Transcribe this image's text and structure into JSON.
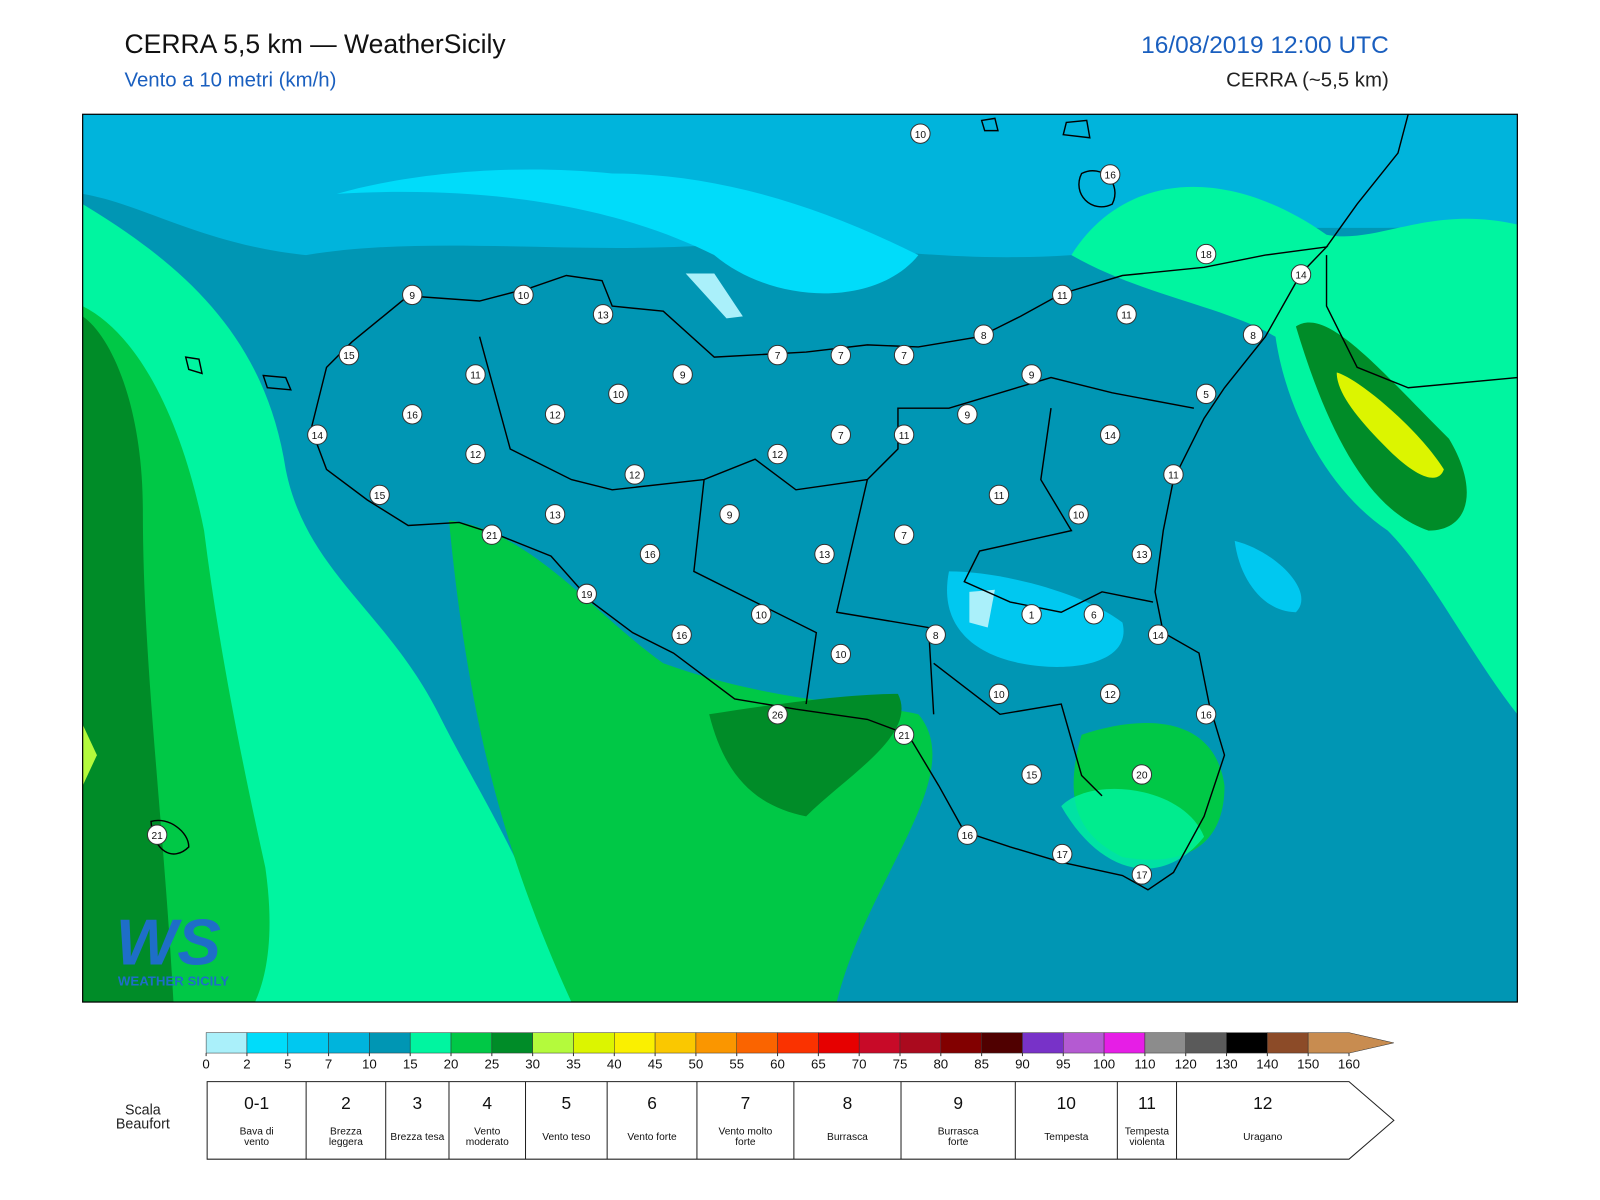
{
  "header": {
    "title": "CERRA 5,5 km — WeatherSicily",
    "subtitle": "Vento a 10 metri (km/h)",
    "datetime": "16/08/2019 12:00 UTC",
    "model": "CERRA (~5,5 km)"
  },
  "map": {
    "stations": [
      10,
      16,
      18,
      14,
      9,
      10,
      13,
      11,
      11,
      8,
      8,
      15,
      7,
      7,
      7,
      11,
      9,
      9,
      10,
      5,
      16,
      12,
      9,
      14,
      7,
      11,
      14,
      12,
      12,
      12,
      11,
      15,
      11,
      13,
      9,
      10,
      21,
      7,
      16,
      13,
      13,
      19,
      10,
      1,
      6,
      16,
      8,
      14,
      10,
      10,
      12,
      16,
      26,
      21,
      15,
      20,
      21,
      16,
      17,
      17
    ],
    "logo": {
      "mark": "WS",
      "text": "WEATHER SICILY"
    }
  },
  "colorbar": {
    "ticks": [
      0,
      2,
      5,
      7,
      10,
      15,
      20,
      25,
      30,
      35,
      40,
      45,
      50,
      55,
      60,
      65,
      70,
      75,
      80,
      85,
      90,
      95,
      100,
      110,
      120,
      130,
      140,
      150,
      160
    ],
    "colors": [
      "#aaf0fa",
      "#00dcfa",
      "#00c8f0",
      "#00b4dc",
      "#0096b4",
      "#00f5a0",
      "#00c846",
      "#008c28",
      "#b4fa3c",
      "#dcf500",
      "#faf000",
      "#fac800",
      "#fa9600",
      "#fa6400",
      "#fa3200",
      "#e60000",
      "#c80a28",
      "#aa0a1e",
      "#820000",
      "#500000",
      "#7832c8",
      "#b45ad2",
      "#e61ee6",
      "#8c8c8c",
      "#5a5a5a",
      "#000000",
      "#8c4b28",
      "#c88c50"
    ]
  },
  "beaufort": {
    "title": "Scala Beaufort",
    "levels": [
      {
        "force": "0-1",
        "description": "Bava di vento"
      },
      {
        "force": "2",
        "description": "Brezza leggera"
      },
      {
        "force": "3",
        "description": "Brezza tesa"
      },
      {
        "force": "4",
        "description": "Vento moderato"
      },
      {
        "force": "5",
        "description": "Vento teso"
      },
      {
        "force": "6",
        "description": "Vento forte"
      },
      {
        "force": "7",
        "description": "Vento molto forte"
      },
      {
        "force": "8",
        "description": "Burrasca"
      },
      {
        "force": "9",
        "description": "Burrasca forte"
      },
      {
        "force": "10",
        "description": "Tempesta"
      },
      {
        "force": "11",
        "description": "Tempesta violenta"
      },
      {
        "force": "12",
        "description": "Uragano"
      }
    ]
  }
}
